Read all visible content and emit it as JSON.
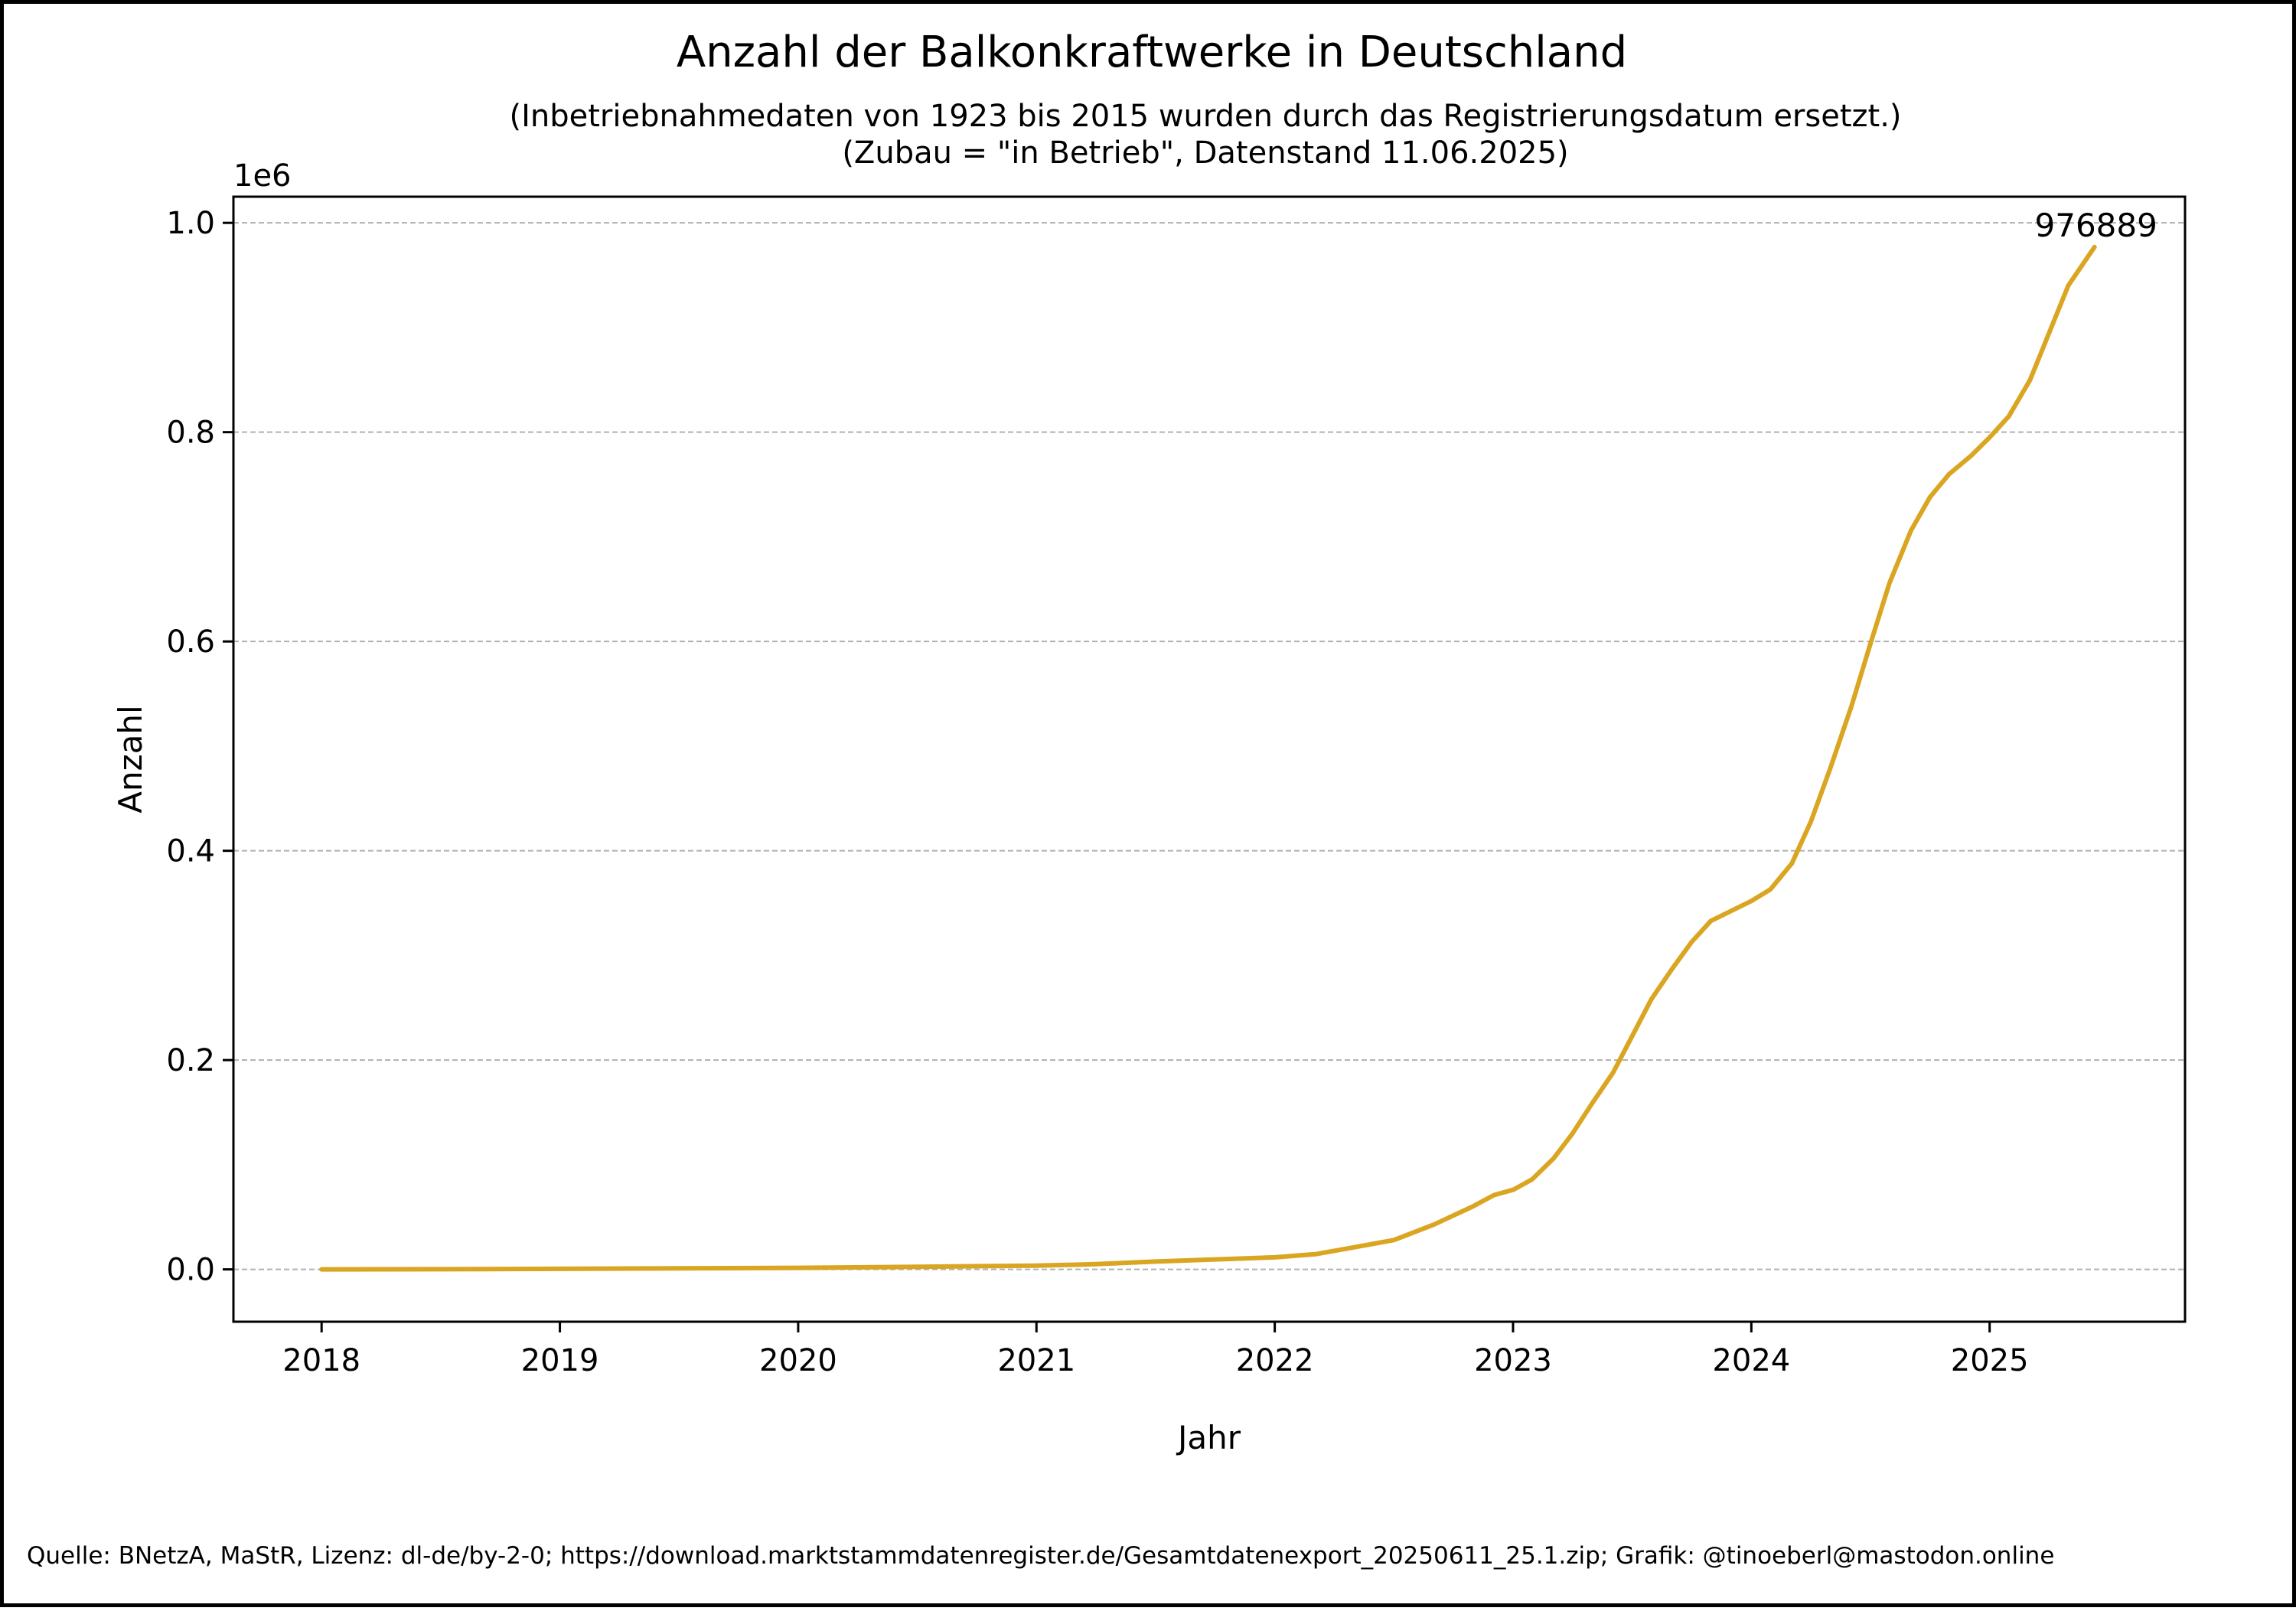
{
  "chart_data": {
    "type": "line",
    "title": "Anzahl der Balkonkraftwerke in Deutschland",
    "subtitle_lines": [
      "(Inbetriebnahmedaten von 1923 bis 2015 wurden durch das Registrierungsdatum ersetzt.)",
      "(Zubau = \"in Betrieb\", Datenstand 11.06.2025)"
    ],
    "xlabel": "Jahr",
    "ylabel": "Anzahl",
    "y_offset_label": "1e6",
    "y_scale": 1000000,
    "xlim": [
      2017.63,
      2025.82
    ],
    "ylim": [
      -0.05,
      1.025
    ],
    "x_ticks": [
      2018,
      2019,
      2020,
      2021,
      2022,
      2023,
      2024,
      2025
    ],
    "x_tick_labels": [
      "2018",
      "2019",
      "2020",
      "2021",
      "2022",
      "2023",
      "2024",
      "2025"
    ],
    "y_ticks": [
      0.0,
      0.2,
      0.4,
      0.6,
      0.8,
      1.0
    ],
    "y_tick_labels": [
      "0.0",
      "0.2",
      "0.4",
      "0.6",
      "0.8",
      "1.0"
    ],
    "grid": "horizontal dashed",
    "line_color": "#DAA520",
    "annotation": {
      "text": "976889",
      "x": 2025.44,
      "y": 0.976889
    },
    "x": [
      2018.0,
      2018.5,
      2019.0,
      2019.5,
      2020.0,
      2020.5,
      2021.0,
      2021.25,
      2021.5,
      2021.75,
      2022.0,
      2022.17,
      2022.33,
      2022.5,
      2022.67,
      2022.83,
      2022.92,
      2023.0,
      2023.08,
      2023.17,
      2023.25,
      2023.33,
      2023.42,
      2023.5,
      2023.58,
      2023.67,
      2023.75,
      2023.83,
      2023.92,
      2024.0,
      2024.08,
      2024.17,
      2024.25,
      2024.33,
      2024.42,
      2024.5,
      2024.58,
      2024.67,
      2024.75,
      2024.83,
      2024.92,
      2025.0,
      2025.08,
      2025.17,
      2025.25,
      2025.33,
      2025.44
    ],
    "y": [
      0.0,
      0.0002,
      0.0005,
      0.001,
      0.0015,
      0.0025,
      0.0035,
      0.005,
      0.0075,
      0.0095,
      0.0115,
      0.0145,
      0.021,
      0.028,
      0.043,
      0.06,
      0.071,
      0.076,
      0.086,
      0.106,
      0.13,
      0.158,
      0.188,
      0.223,
      0.258,
      0.288,
      0.313,
      0.333,
      0.343,
      0.352,
      0.363,
      0.388,
      0.428,
      0.478,
      0.538,
      0.598,
      0.656,
      0.706,
      0.738,
      0.76,
      0.777,
      0.795,
      0.815,
      0.85,
      0.895,
      0.94,
      0.976889
    ]
  },
  "footer": {
    "source": "Quelle: BNetzA, MaStR, Lizenz: dl-de/by-2-0; https://download.marktstammdatenregister.de/Gesamtdatenexport_20250611_25.1.zip; Grafik: @tinoeberl@mastodon.online"
  }
}
